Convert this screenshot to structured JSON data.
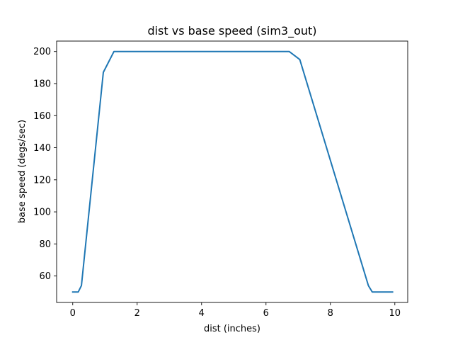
{
  "chart_data": {
    "type": "line",
    "title": "dist vs base speed (sim3_out)",
    "xlabel": "dist (inches)",
    "ylabel": "base speed (degs/sec)",
    "xlim": [
      -0.5,
      10.4
    ],
    "ylim": [
      43.5,
      206.5
    ],
    "x_ticks": [
      0,
      2,
      4,
      6,
      8,
      10
    ],
    "y_ticks": [
      60,
      80,
      100,
      120,
      140,
      160,
      180,
      200
    ],
    "x_tick_labels": [
      "0",
      "2",
      "4",
      "6",
      "8",
      "10"
    ],
    "y_tick_labels": [
      "60",
      "80",
      "100",
      "120",
      "140",
      "160",
      "180",
      "200"
    ],
    "grid": false,
    "legend": "none",
    "series": [
      {
        "color": "#1f77b4",
        "x": [
          0.0,
          0.17,
          0.27,
          0.95,
          1.28,
          6.72,
          7.05,
          9.18,
          9.3,
          9.93
        ],
        "y": [
          50,
          50,
          54,
          187,
          200,
          200,
          195,
          54,
          50,
          50
        ]
      }
    ]
  }
}
